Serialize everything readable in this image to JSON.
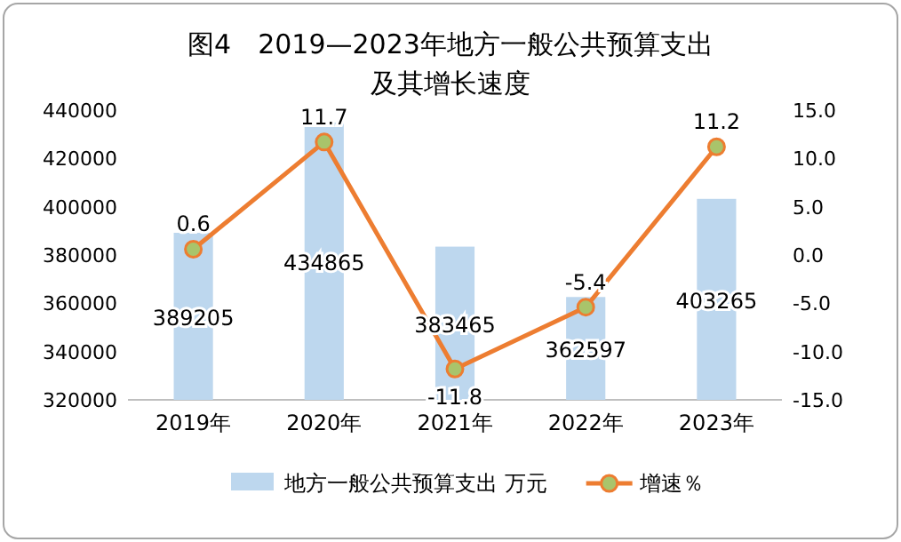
{
  "chart_data": {
    "type": "bar",
    "title": "图4　2019—2023年地方一般公共预算支出及其增长速度",
    "categories": [
      "2019年",
      "2020年",
      "2021年",
      "2022年",
      "2023年"
    ],
    "series": [
      {
        "name": "地方一般公共预算支出 万元",
        "color": "#bdd7ee",
        "values": [
          389205,
          434865,
          383465,
          362597,
          403265
        ]
      },
      {
        "name": "增速％",
        "type": "line",
        "axis": "y2",
        "color": "#ed7d31",
        "values": [
          0.6,
          11.7,
          -11.8,
          -5.4,
          11.2
        ]
      }
    ],
    "ylim": [
      320000,
      440000
    ],
    "yticks": [
      320000,
      340000,
      360000,
      380000,
      400000,
      420000,
      440000
    ],
    "y2lim": [
      -15,
      15
    ],
    "y2ticks": [
      {
        "value": -15,
        "label": "-15.0"
      },
      {
        "value": -10,
        "label": "-10.0"
      },
      {
        "value": -5,
        "label": "-5.0"
      },
      {
        "value": 0,
        "label": "0.0"
      },
      {
        "value": 5,
        "label": "5.0"
      },
      {
        "value": 10,
        "label": "10.0"
      },
      {
        "value": 15,
        "label": "15.0"
      }
    ],
    "data_labels": true,
    "legend": "bottom",
    "marker": "circle",
    "grid": false
  }
}
